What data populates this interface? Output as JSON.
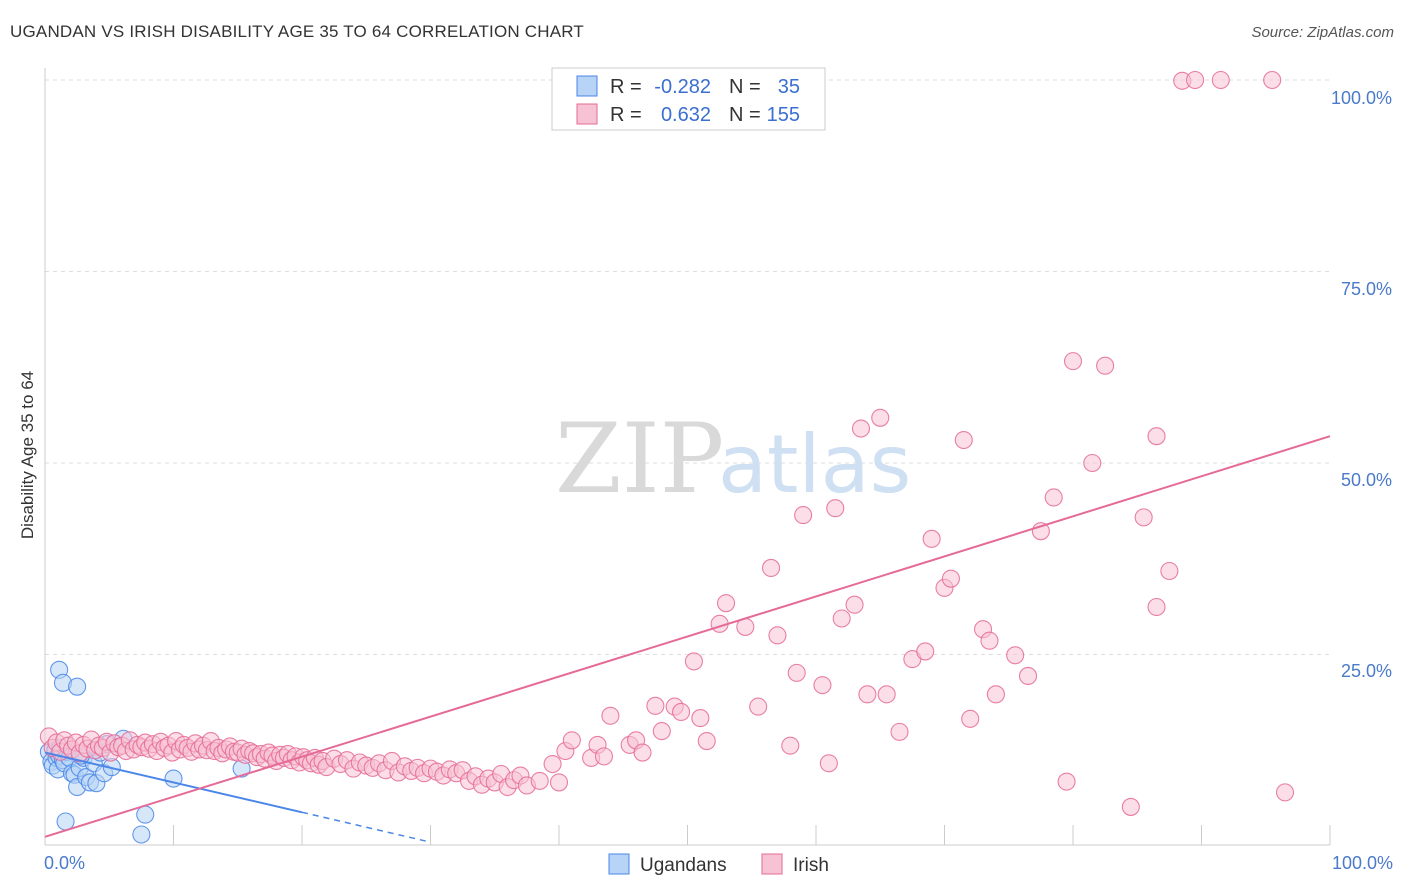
{
  "title": "UGANDAN VS IRISH DISABILITY AGE 35 TO 64 CORRELATION CHART",
  "source": "Source: ZipAtlas.com",
  "colors": {
    "ugandans": "#4a86e8",
    "ugandans_fill": "#b7d3f5",
    "irish": "#e56a97",
    "irish_fill": "#f7c3d4",
    "axis_label": "#4a7ac9",
    "grid": "#dddddd"
  },
  "legend": {
    "rows": [
      {
        "r_label": "R =",
        "r_value": "-0.282",
        "n_label": "N =",
        "n_value": "35"
      },
      {
        "r_label": "R =",
        "r_value": "0.632",
        "n_label": "N =",
        "n_value": "155"
      }
    ]
  },
  "watermark": {
    "zip": "ZIP",
    "atlas": "atlas"
  },
  "chart_data": {
    "type": "scatter",
    "title": "UGANDAN VS IRISH DISABILITY AGE 35 TO 64 CORRELATION CHART",
    "xlabel": "",
    "ylabel": "Disability Age 35 to 64",
    "xlim": [
      0,
      100
    ],
    "ylim": [
      0,
      100
    ],
    "y_ticks": [
      {
        "value": 25,
        "label": "25.0%"
      },
      {
        "value": 50,
        "label": "50.0%"
      },
      {
        "value": 75,
        "label": "75.0%"
      },
      {
        "value": 100,
        "label": "100.0%"
      }
    ],
    "x_tick_labels": {
      "min": "0.0%",
      "max": "100.0%"
    },
    "grid": true,
    "series": [
      {
        "name": "Ugandans",
        "points": [
          [
            0.3,
            12.3
          ],
          [
            0.5,
            11
          ],
          [
            0.6,
            10.5
          ],
          [
            0.8,
            12.5
          ],
          [
            0.9,
            11.5
          ],
          [
            1.0,
            10
          ],
          [
            1.1,
            11.8
          ],
          [
            1.2,
            12.8
          ],
          [
            1.4,
            11.2
          ],
          [
            1.5,
            10.8
          ],
          [
            1.7,
            12.3
          ],
          [
            1.9,
            11.5
          ],
          [
            2.1,
            9.5
          ],
          [
            2.3,
            9.3
          ],
          [
            2.5,
            7.7
          ],
          [
            2.7,
            10.2
          ],
          [
            3.0,
            11.5
          ],
          [
            3.2,
            9.0
          ],
          [
            3.5,
            8.3
          ],
          [
            3.8,
            10.8
          ],
          [
            4.0,
            8.2
          ],
          [
            4.3,
            12.2
          ],
          [
            4.6,
            9.5
          ],
          [
            5.2,
            10.3
          ],
          [
            1.1,
            23.0
          ],
          [
            1.4,
            21.3
          ],
          [
            2.5,
            20.8
          ],
          [
            4.8,
            13.3
          ],
          [
            6.1,
            14.0
          ],
          [
            2.8,
            11.8
          ],
          [
            1.6,
            3.2
          ],
          [
            7.5,
            1.5
          ],
          [
            7.8,
            4.1
          ],
          [
            10.0,
            8.8
          ],
          [
            15.3,
            10.1
          ]
        ],
        "trend": {
          "x0": 0,
          "y0": 12.2,
          "x1": 20,
          "y1": 4.4,
          "dash_to_x": 30,
          "dash_to_y": 0.5
        }
      },
      {
        "name": "Irish",
        "points": [
          [
            0.3,
            14.3
          ],
          [
            0.6,
            12.8
          ],
          [
            0.9,
            13.5
          ],
          [
            1.2,
            12.3
          ],
          [
            1.5,
            13.8
          ],
          [
            1.8,
            13.1
          ],
          [
            2.1,
            12.6
          ],
          [
            2.4,
            13.5
          ],
          [
            2.7,
            12.1
          ],
          [
            3.0,
            13.2
          ],
          [
            3.3,
            12.7
          ],
          [
            3.6,
            13.9
          ],
          [
            3.9,
            12.5
          ],
          [
            4.2,
            13.1
          ],
          [
            4.5,
            12.8
          ],
          [
            4.8,
            13.6
          ],
          [
            5.1,
            12.2
          ],
          [
            5.4,
            13.4
          ],
          [
            5.7,
            12.9
          ],
          [
            6.0,
            13.1
          ],
          [
            6.3,
            12.4
          ],
          [
            6.6,
            13.8
          ],
          [
            6.9,
            12.6
          ],
          [
            7.2,
            13.2
          ],
          [
            7.5,
            12.9
          ],
          [
            7.8,
            13.5
          ],
          [
            8.1,
            12.7
          ],
          [
            8.4,
            13.3
          ],
          [
            8.7,
            12.4
          ],
          [
            9.0,
            13.6
          ],
          [
            9.3,
            12.8
          ],
          [
            9.6,
            13.1
          ],
          [
            9.9,
            12.2
          ],
          [
            10.2,
            13.7
          ],
          [
            10.5,
            12.6
          ],
          [
            10.8,
            13.2
          ],
          [
            11.1,
            12.8
          ],
          [
            11.4,
            12.3
          ],
          [
            11.7,
            13.4
          ],
          [
            12.0,
            12.6
          ],
          [
            12.3,
            13.1
          ],
          [
            12.6,
            12.5
          ],
          [
            12.9,
            13.7
          ],
          [
            13.2,
            12.4
          ],
          [
            13.5,
            12.8
          ],
          [
            13.8,
            12.1
          ],
          [
            14.1,
            12.6
          ],
          [
            14.4,
            13.0
          ],
          [
            14.7,
            12.3
          ],
          [
            15.0,
            12.2
          ],
          [
            15.3,
            12.7
          ],
          [
            15.6,
            11.9
          ],
          [
            15.9,
            12.4
          ],
          [
            16.2,
            12.1
          ],
          [
            16.5,
            11.6
          ],
          [
            16.8,
            12.0
          ],
          [
            17.1,
            11.4
          ],
          [
            17.4,
            12.2
          ],
          [
            17.7,
            11.8
          ],
          [
            18.0,
            11.1
          ],
          [
            18.3,
            11.9
          ],
          [
            18.6,
            11.5
          ],
          [
            18.9,
            12.0
          ],
          [
            19.2,
            11.2
          ],
          [
            19.5,
            11.7
          ],
          [
            19.8,
            10.9
          ],
          [
            20.1,
            11.6
          ],
          [
            20.4,
            11.2
          ],
          [
            20.7,
            10.8
          ],
          [
            21.0,
            11.5
          ],
          [
            21.3,
            10.6
          ],
          [
            21.6,
            11.1
          ],
          [
            21.9,
            10.3
          ],
          [
            22.5,
            11.4
          ],
          [
            23.0,
            10.7
          ],
          [
            23.5,
            11.2
          ],
          [
            24.0,
            10.1
          ],
          [
            24.5,
            10.9
          ],
          [
            25.0,
            10.5
          ],
          [
            25.5,
            10.2
          ],
          [
            26.0,
            10.8
          ],
          [
            26.5,
            9.9
          ],
          [
            27.0,
            11.1
          ],
          [
            27.5,
            9.6
          ],
          [
            28.0,
            10.4
          ],
          [
            28.5,
            9.8
          ],
          [
            29.0,
            10.2
          ],
          [
            29.5,
            9.5
          ],
          [
            30.0,
            10.1
          ],
          [
            30.5,
            9.7
          ],
          [
            31.0,
            9.2
          ],
          [
            31.5,
            10.0
          ],
          [
            32.0,
            9.5
          ],
          [
            32.5,
            9.9
          ],
          [
            33.0,
            8.5
          ],
          [
            33.5,
            9.1
          ],
          [
            34.0,
            8.0
          ],
          [
            34.5,
            8.8
          ],
          [
            35.0,
            8.3
          ],
          [
            35.5,
            9.4
          ],
          [
            36.0,
            7.7
          ],
          [
            36.5,
            8.6
          ],
          [
            37.0,
            9.2
          ],
          [
            37.5,
            7.9
          ],
          [
            38.5,
            8.5
          ],
          [
            39.5,
            10.7
          ],
          [
            40.0,
            8.3
          ],
          [
            40.5,
            12.4
          ],
          [
            41.0,
            13.8
          ],
          [
            42.5,
            11.5
          ],
          [
            43.0,
            13.2
          ],
          [
            43.5,
            11.7
          ],
          [
            44.0,
            17.0
          ],
          [
            45.5,
            13.2
          ],
          [
            46.0,
            13.8
          ],
          [
            46.5,
            12.2
          ],
          [
            47.5,
            18.3
          ],
          [
            48.0,
            15.0
          ],
          [
            49.0,
            18.2
          ],
          [
            49.5,
            17.5
          ],
          [
            50.5,
            24.1
          ],
          [
            51.0,
            16.7
          ],
          [
            51.5,
            13.7
          ],
          [
            52.5,
            29.0
          ],
          [
            53.0,
            31.7
          ],
          [
            54.5,
            28.6
          ],
          [
            55.5,
            18.2
          ],
          [
            56.5,
            36.3
          ],
          [
            57.0,
            27.5
          ],
          [
            58.0,
            13.1
          ],
          [
            58.5,
            22.6
          ],
          [
            59.0,
            43.2
          ],
          [
            60.5,
            21.0
          ],
          [
            61.0,
            10.8
          ],
          [
            61.5,
            44.1
          ],
          [
            62.0,
            29.7
          ],
          [
            63.0,
            31.5
          ],
          [
            63.5,
            54.5
          ],
          [
            64.0,
            19.8
          ],
          [
            65.0,
            55.9
          ],
          [
            65.5,
            19.8
          ],
          [
            66.5,
            14.9
          ],
          [
            67.5,
            24.4
          ],
          [
            68.5,
            25.4
          ],
          [
            69.0,
            40.1
          ],
          [
            70.0,
            33.7
          ],
          [
            70.5,
            34.9
          ],
          [
            71.5,
            53.0
          ],
          [
            72.0,
            16.6
          ],
          [
            73.0,
            28.3
          ],
          [
            73.5,
            26.8
          ],
          [
            74.0,
            19.8
          ],
          [
            75.5,
            24.9
          ],
          [
            76.5,
            22.2
          ],
          [
            77.5,
            41.1
          ],
          [
            78.5,
            45.5
          ],
          [
            79.5,
            8.4
          ],
          [
            80.0,
            63.3
          ],
          [
            81.5,
            50.0
          ],
          [
            82.5,
            62.7
          ],
          [
            84.5,
            5.1
          ],
          [
            85.5,
            42.9
          ],
          [
            86.5,
            53.5
          ],
          [
            87.5,
            35.9
          ],
          [
            88.5,
            99.9
          ],
          [
            89.5,
            100.0
          ],
          [
            91.5,
            100.0
          ],
          [
            95.5,
            100.0
          ],
          [
            86.5,
            31.2
          ],
          [
            96.5,
            7.0
          ]
        ],
        "trend": {
          "x0": 0,
          "y0": 1.2,
          "x1": 100,
          "y1": 53.5
        }
      }
    ],
    "legend_position": "bottom-center",
    "legend_labels": [
      "Ugandans",
      "Irish"
    ]
  }
}
